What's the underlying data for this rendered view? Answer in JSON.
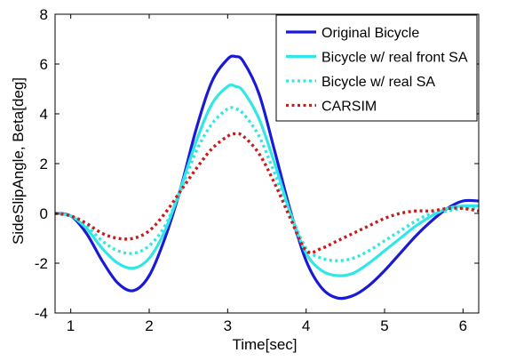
{
  "chart_data": {
    "type": "line",
    "title": "",
    "xlabel": "Time[sec]",
    "ylabel": "SideSlipAngle, Beta[deg]",
    "xlim": [
      0.8,
      6.2
    ],
    "ylim": [
      -4,
      8
    ],
    "xticks": [
      1,
      2,
      3,
      4,
      5,
      6
    ],
    "yticks": [
      -4,
      -2,
      0,
      2,
      4,
      6,
      8
    ],
    "grid": false,
    "legend_position": "top-right",
    "series": [
      {
        "name": "Original Bicycle",
        "color": "#1a1ad6",
        "style": "solid",
        "x": [
          0.8,
          1.0,
          1.2,
          1.4,
          1.6,
          1.8,
          2.0,
          2.2,
          2.4,
          2.6,
          2.8,
          3.0,
          3.1,
          3.2,
          3.4,
          3.6,
          3.8,
          4.0,
          4.2,
          4.4,
          4.6,
          4.8,
          5.0,
          5.2,
          5.4,
          5.6,
          5.8,
          6.0,
          6.2
        ],
        "y": [
          0.0,
          -0.1,
          -0.8,
          -1.9,
          -2.8,
          -3.1,
          -2.5,
          -1.0,
          1.0,
          3.4,
          5.3,
          6.2,
          6.3,
          6.1,
          4.8,
          2.5,
          0.1,
          -1.9,
          -3.0,
          -3.4,
          -3.3,
          -2.9,
          -2.3,
          -1.6,
          -0.9,
          -0.3,
          0.2,
          0.5,
          0.5
        ]
      },
      {
        "name": "Bicycle w/ real front SA",
        "color": "#33e6e6",
        "style": "solid",
        "x": [
          0.8,
          1.0,
          1.2,
          1.4,
          1.6,
          1.8,
          2.0,
          2.2,
          2.4,
          2.6,
          2.8,
          3.0,
          3.1,
          3.2,
          3.4,
          3.6,
          3.8,
          4.0,
          4.2,
          4.4,
          4.6,
          4.8,
          5.0,
          5.2,
          5.4,
          5.6,
          5.8,
          6.0,
          6.2
        ],
        "y": [
          0.0,
          -0.1,
          -0.6,
          -1.4,
          -2.0,
          -2.2,
          -1.8,
          -0.7,
          1.0,
          2.9,
          4.4,
          5.1,
          5.1,
          4.9,
          3.8,
          2.0,
          0.0,
          -1.6,
          -2.3,
          -2.5,
          -2.4,
          -2.0,
          -1.5,
          -1.0,
          -0.5,
          -0.1,
          0.2,
          0.3,
          0.3
        ]
      },
      {
        "name": "Bicycle w/ real SA",
        "color": "#33e6e6",
        "style": "dotted",
        "x": [
          0.8,
          1.0,
          1.2,
          1.4,
          1.6,
          1.8,
          2.0,
          2.2,
          2.4,
          2.6,
          2.8,
          3.0,
          3.1,
          3.2,
          3.4,
          3.6,
          3.8,
          4.0,
          4.2,
          4.4,
          4.6,
          4.8,
          5.0,
          5.2,
          5.4,
          5.6,
          5.8,
          6.0,
          6.2
        ],
        "y": [
          0.0,
          -0.1,
          -0.5,
          -1.1,
          -1.5,
          -1.6,
          -1.3,
          -0.5,
          0.9,
          2.5,
          3.6,
          4.2,
          4.2,
          4.0,
          3.1,
          1.6,
          0.0,
          -1.4,
          -1.8,
          -1.9,
          -1.8,
          -1.5,
          -1.1,
          -0.7,
          -0.3,
          0.0,
          0.1,
          0.2,
          0.2
        ]
      },
      {
        "name": "CARSIM",
        "color": "#cc1a1a",
        "style": "dotted",
        "x": [
          0.8,
          1.0,
          1.2,
          1.4,
          1.6,
          1.8,
          2.0,
          2.2,
          2.4,
          2.6,
          2.8,
          3.0,
          3.1,
          3.2,
          3.4,
          3.6,
          3.8,
          4.0,
          4.2,
          4.4,
          4.6,
          4.8,
          5.0,
          5.2,
          5.4,
          5.6,
          5.8,
          6.0,
          6.2
        ],
        "y": [
          0.0,
          -0.1,
          -0.4,
          -0.8,
          -1.0,
          -1.0,
          -0.7,
          0.0,
          0.9,
          1.8,
          2.6,
          3.1,
          3.2,
          3.1,
          2.4,
          1.2,
          -0.2,
          -1.5,
          -1.4,
          -1.1,
          -0.8,
          -0.5,
          -0.2,
          0.0,
          0.1,
          0.1,
          0.2,
          0.2,
          0.1
        ]
      }
    ]
  }
}
